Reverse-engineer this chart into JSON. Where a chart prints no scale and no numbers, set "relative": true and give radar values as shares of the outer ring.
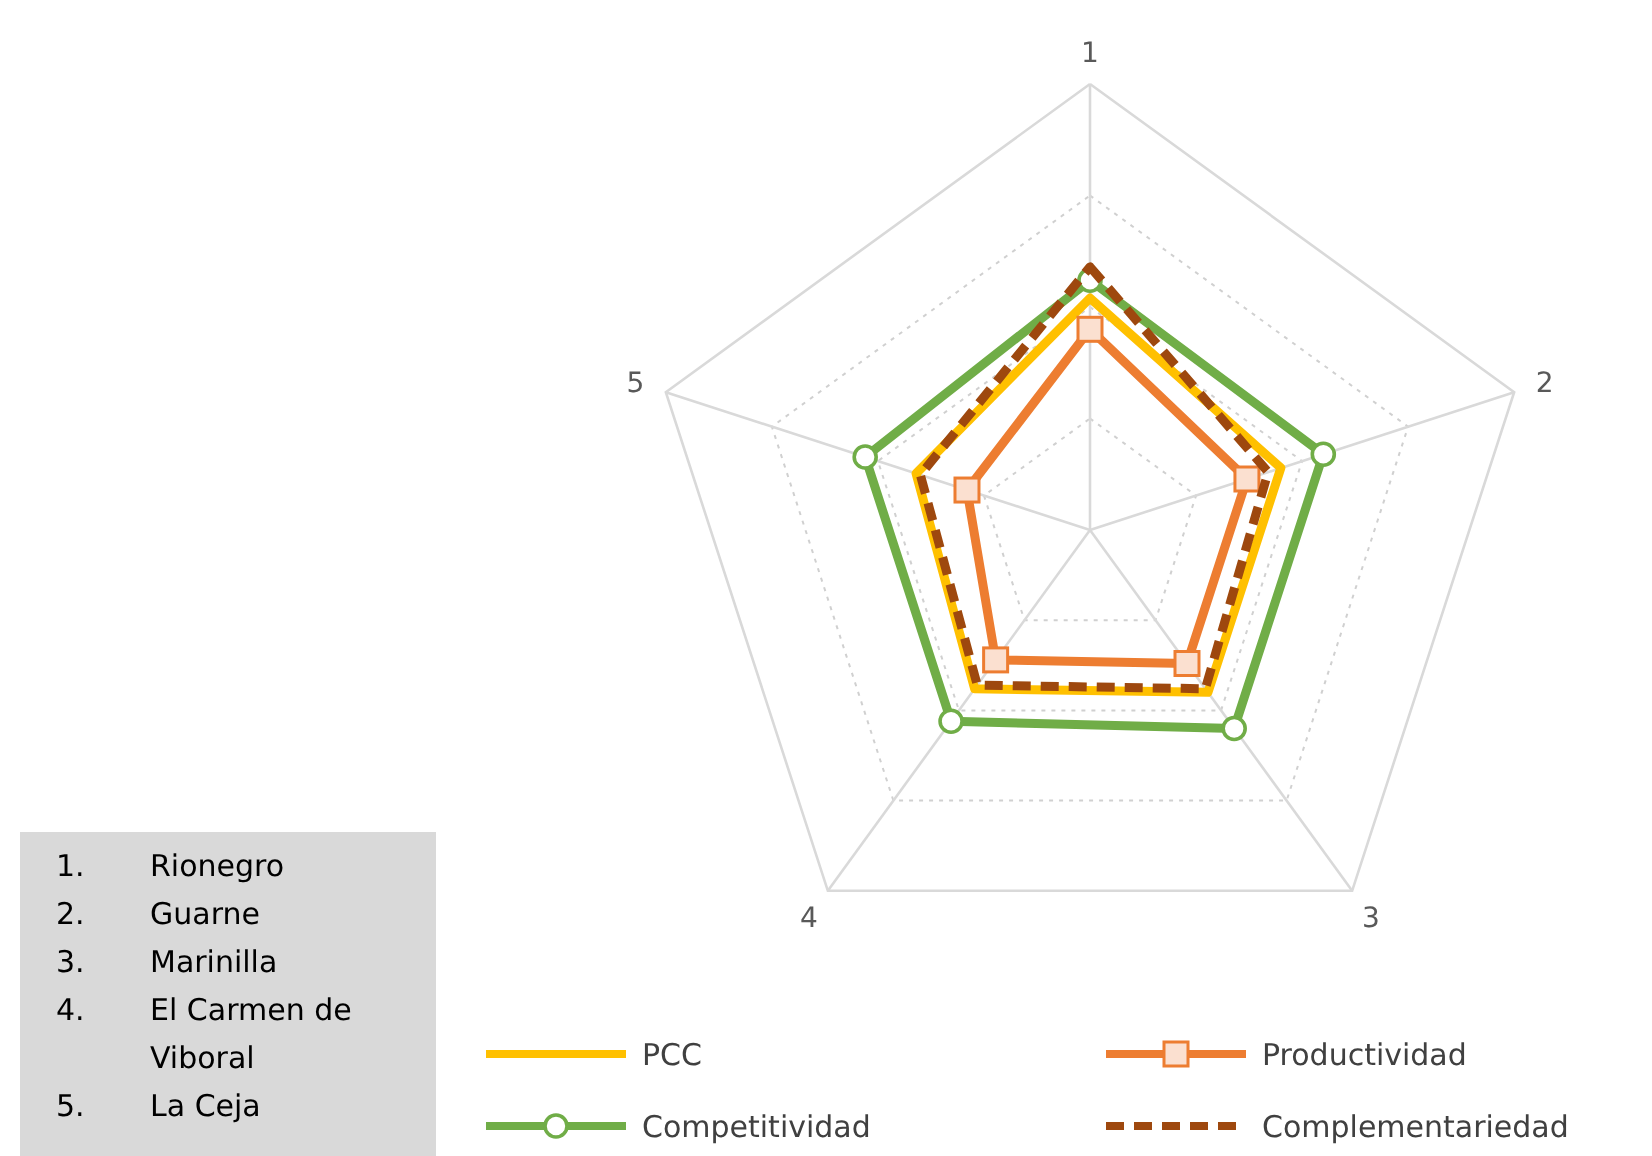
{
  "chart_data": {
    "type": "radar",
    "relative": true,
    "categories": [
      "1",
      "2",
      "3",
      "4",
      "5"
    ],
    "legend": "bottom",
    "grid": true,
    "series": [
      {
        "name": "PCC",
        "color": "#ffc000",
        "marker": "none",
        "line_style": "solid",
        "values": [
          0.52,
          0.45,
          0.45,
          0.44,
          0.41
        ]
      },
      {
        "name": "Productividad",
        "color": "#ed7d31",
        "marker": "square",
        "line_style": "solid",
        "values": [
          0.45,
          0.37,
          0.37,
          0.36,
          0.29
        ]
      },
      {
        "name": "Competitividad",
        "color": "#70ad47",
        "marker": "circle",
        "line_style": "solid",
        "values": [
          0.56,
          0.55,
          0.55,
          0.53,
          0.53
        ]
      },
      {
        "name": "Complementariedad",
        "color": "#9e480e",
        "marker": "none",
        "line_style": "dashed",
        "values": [
          0.59,
          0.42,
          0.44,
          0.43,
          0.4
        ]
      }
    ],
    "annotations": [
      "1. Rionegro",
      "2. Guarne",
      "3. Marinilla",
      "4. El Carmen de Viboral",
      "5. La Ceja"
    ]
  }
}
